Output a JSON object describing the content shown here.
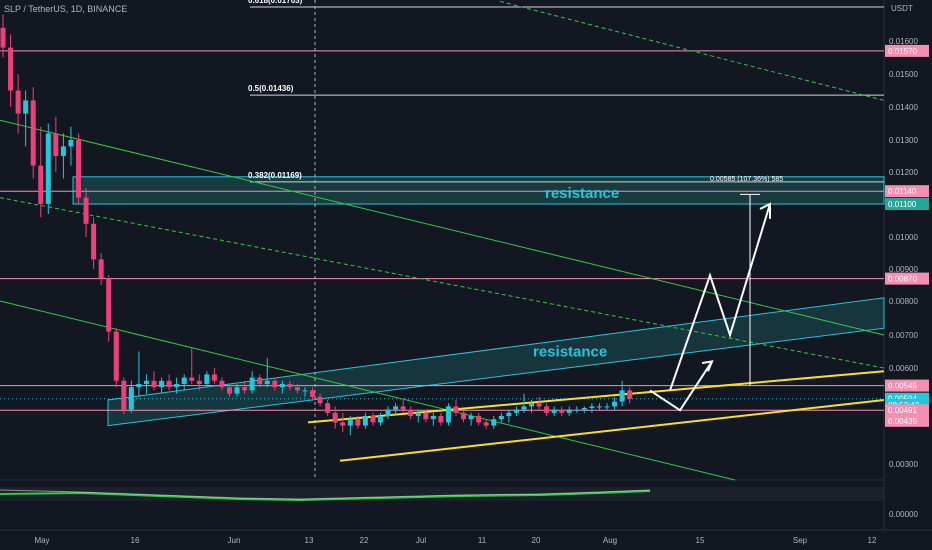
{
  "header": {
    "symbol_title": "SLP / TetherUS, 1D, BINANCE"
  },
  "colors": {
    "background": "#131722",
    "up": "#26c6da",
    "down": "#ec407a",
    "support": "#f7e02a",
    "resistance_zone": "#26a69a",
    "level_line": "#f48fb1",
    "trend_green": "#2ecc40",
    "white": "#ffffff"
  },
  "chart_data": {
    "type": "candlestick",
    "title": "SLP / TetherUS, 1D, BINANCE",
    "currency_label": "USDT",
    "y_axis_ticks": [
      "0.01600",
      "0.01500",
      "0.01400",
      "0.01300",
      "0.01200",
      "0.01100",
      "0.01000",
      "0.00900",
      "0.00800",
      "0.00700",
      "0.00600",
      "0.00300"
    ],
    "lower_pane_tick": "0.00000",
    "x_axis_ticks": [
      "May",
      "16",
      "Jun",
      "13",
      "22",
      "Jul",
      "11",
      "20",
      "Aug",
      "15",
      "Sep",
      "12"
    ],
    "price_badges": [
      {
        "label": "0.01570",
        "value": 0.0157,
        "color": "#f48fb1"
      },
      {
        "label": "0.01140",
        "value": 0.0114,
        "color": "#f48fb1"
      },
      {
        "label": "0.01100",
        "value": 0.011,
        "color": "#26a69a"
      },
      {
        "label": "0.00870",
        "value": 0.0087,
        "color": "#f48fb1"
      },
      {
        "label": "0.00545",
        "value": 0.00545,
        "color": "#f48fb1"
      },
      {
        "label": "0.00504",
        "value": 0.00504,
        "color": "#26c6da"
      },
      {
        "label": "08:53:43",
        "value": 0.00485,
        "color": "#26c6da"
      },
      {
        "label": "0.00491",
        "value": 0.00468,
        "color": "#f48fb1"
      },
      {
        "label": "0.00435",
        "value": 0.00435,
        "color": "#f48fb1"
      }
    ],
    "fib_levels": [
      {
        "label": "0.618(0.01703)",
        "value": 0.01703
      },
      {
        "label": "0.5(0.01436)",
        "value": 0.01436
      },
      {
        "label": "0.382(0.01169)",
        "value": 0.01169
      }
    ],
    "annotations": [
      {
        "text": "resistance",
        "x": "Jul 25",
        "value": 0.01137
      },
      {
        "text": "resistance",
        "x": "Jul 12",
        "value": 0.0065
      }
    ],
    "measure_label": "0.00585 (107.36%) 585",
    "candles": [
      {
        "t": 0,
        "o": 0.0164,
        "h": 0.0168,
        "l": 0.0155,
        "c": 0.0158
      },
      {
        "t": 1,
        "o": 0.0158,
        "h": 0.0162,
        "l": 0.014,
        "c": 0.0145
      },
      {
        "t": 2,
        "o": 0.0145,
        "h": 0.015,
        "l": 0.0132,
        "c": 0.0138
      },
      {
        "t": 3,
        "o": 0.0138,
        "h": 0.0145,
        "l": 0.0128,
        "c": 0.0142
      },
      {
        "t": 4,
        "o": 0.0142,
        "h": 0.0146,
        "l": 0.0118,
        "c": 0.0122
      },
      {
        "t": 5,
        "o": 0.0122,
        "h": 0.0134,
        "l": 0.0106,
        "c": 0.011
      },
      {
        "t": 6,
        "o": 0.011,
        "h": 0.0135,
        "l": 0.0107,
        "c": 0.0132
      },
      {
        "t": 7,
        "o": 0.0132,
        "h": 0.0137,
        "l": 0.012,
        "c": 0.0125
      },
      {
        "t": 8,
        "o": 0.0125,
        "h": 0.0132,
        "l": 0.0118,
        "c": 0.0128
      },
      {
        "t": 9,
        "o": 0.0128,
        "h": 0.0134,
        "l": 0.0122,
        "c": 0.013
      },
      {
        "t": 10,
        "o": 0.013,
        "h": 0.0132,
        "l": 0.011,
        "c": 0.0112
      },
      {
        "t": 11,
        "o": 0.0112,
        "h": 0.0115,
        "l": 0.01,
        "c": 0.0104
      },
      {
        "t": 12,
        "o": 0.0104,
        "h": 0.0106,
        "l": 0.009,
        "c": 0.0093
      },
      {
        "t": 13,
        "o": 0.0093,
        "h": 0.0095,
        "l": 0.0085,
        "c": 0.0087
      },
      {
        "t": 14,
        "o": 0.0087,
        "h": 0.0088,
        "l": 0.0068,
        "c": 0.0071
      },
      {
        "t": 15,
        "o": 0.0071,
        "h": 0.0072,
        "l": 0.0054,
        "c": 0.0056
      },
      {
        "t": 16,
        "o": 0.0056,
        "h": 0.0057,
        "l": 0.00455,
        "c": 0.0047
      },
      {
        "t": 17,
        "o": 0.0047,
        "h": 0.0056,
        "l": 0.0046,
        "c": 0.0054
      },
      {
        "t": 18,
        "o": 0.0054,
        "h": 0.0065,
        "l": 0.0051,
        "c": 0.0055
      },
      {
        "t": 19,
        "o": 0.0055,
        "h": 0.0058,
        "l": 0.0052,
        "c": 0.0056
      },
      {
        "t": 20,
        "o": 0.0056,
        "h": 0.0059,
        "l": 0.0053,
        "c": 0.0054
      },
      {
        "t": 21,
        "o": 0.0054,
        "h": 0.0057,
        "l": 0.0052,
        "c": 0.0056
      },
      {
        "t": 22,
        "o": 0.0056,
        "h": 0.0058,
        "l": 0.0053,
        "c": 0.0054
      },
      {
        "t": 23,
        "o": 0.0054,
        "h": 0.0057,
        "l": 0.0052,
        "c": 0.0055
      },
      {
        "t": 24,
        "o": 0.0055,
        "h": 0.0058,
        "l": 0.0053,
        "c": 0.0057
      },
      {
        "t": 25,
        "o": 0.0057,
        "h": 0.0066,
        "l": 0.0055,
        "c": 0.0056
      },
      {
        "t": 26,
        "o": 0.0056,
        "h": 0.0058,
        "l": 0.0053,
        "c": 0.0055
      },
      {
        "t": 27,
        "o": 0.0055,
        "h": 0.0059,
        "l": 0.0054,
        "c": 0.0058
      },
      {
        "t": 28,
        "o": 0.0058,
        "h": 0.006,
        "l": 0.0055,
        "c": 0.0056
      },
      {
        "t": 29,
        "o": 0.0056,
        "h": 0.0057,
        "l": 0.0053,
        "c": 0.0054
      },
      {
        "t": 30,
        "o": 0.0054,
        "h": 0.0055,
        "l": 0.0051,
        "c": 0.0052
      },
      {
        "t": 31,
        "o": 0.0052,
        "h": 0.0055,
        "l": 0.0051,
        "c": 0.0054
      },
      {
        "t": 32,
        "o": 0.0054,
        "h": 0.0056,
        "l": 0.0052,
        "c": 0.0053
      },
      {
        "t": 33,
        "o": 0.0053,
        "h": 0.0059,
        "l": 0.0052,
        "c": 0.0057
      },
      {
        "t": 34,
        "o": 0.0057,
        "h": 0.0058,
        "l": 0.0054,
        "c": 0.0055
      },
      {
        "t": 35,
        "o": 0.0055,
        "h": 0.0063,
        "l": 0.0054,
        "c": 0.0056
      },
      {
        "t": 36,
        "o": 0.0056,
        "h": 0.0057,
        "l": 0.0053,
        "c": 0.0054
      },
      {
        "t": 37,
        "o": 0.0054,
        "h": 0.0056,
        "l": 0.0052,
        "c": 0.0055
      },
      {
        "t": 38,
        "o": 0.0055,
        "h": 0.0056,
        "l": 0.0053,
        "c": 0.0054
      },
      {
        "t": 39,
        "o": 0.0054,
        "h": 0.0055,
        "l": 0.0052,
        "c": 0.0053
      },
      {
        "t": 40,
        "o": 0.0053,
        "h": 0.0054,
        "l": 0.0051,
        "c": 0.0053
      },
      {
        "t": 41,
        "o": 0.0053,
        "h": 0.0054,
        "l": 0.005,
        "c": 0.0051
      },
      {
        "t": 42,
        "o": 0.0051,
        "h": 0.0052,
        "l": 0.0048,
        "c": 0.0049
      },
      {
        "t": 43,
        "o": 0.0049,
        "h": 0.005,
        "l": 0.0045,
        "c": 0.0046
      },
      {
        "t": 44,
        "o": 0.0046,
        "h": 0.0048,
        "l": 0.0041,
        "c": 0.0043
      },
      {
        "t": 45,
        "o": 0.0043,
        "h": 0.0046,
        "l": 0.004,
        "c": 0.0042
      },
      {
        "t": 46,
        "o": 0.0042,
        "h": 0.0045,
        "l": 0.0039,
        "c": 0.0044
      },
      {
        "t": 47,
        "o": 0.0044,
        "h": 0.0045,
        "l": 0.0041,
        "c": 0.0042
      },
      {
        "t": 48,
        "o": 0.0042,
        "h": 0.0046,
        "l": 0.0041,
        "c": 0.0045
      },
      {
        "t": 49,
        "o": 0.0045,
        "h": 0.0046,
        "l": 0.0042,
        "c": 0.0043
      },
      {
        "t": 50,
        "o": 0.0043,
        "h": 0.0046,
        "l": 0.0042,
        "c": 0.0045
      },
      {
        "t": 51,
        "o": 0.0045,
        "h": 0.0048,
        "l": 0.0044,
        "c": 0.0047
      },
      {
        "t": 52,
        "o": 0.0047,
        "h": 0.0049,
        "l": 0.0045,
        "c": 0.0048
      },
      {
        "t": 53,
        "o": 0.0048,
        "h": 0.005,
        "l": 0.0046,
        "c": 0.0047
      },
      {
        "t": 54,
        "o": 0.0047,
        "h": 0.0048,
        "l": 0.0044,
        "c": 0.0045
      },
      {
        "t": 55,
        "o": 0.0045,
        "h": 0.0047,
        "l": 0.0043,
        "c": 0.0046
      },
      {
        "t": 56,
        "o": 0.0046,
        "h": 0.0047,
        "l": 0.0043,
        "c": 0.0044
      },
      {
        "t": 57,
        "o": 0.0044,
        "h": 0.0046,
        "l": 0.0042,
        "c": 0.0045
      },
      {
        "t": 58,
        "o": 0.0045,
        "h": 0.0046,
        "l": 0.0042,
        "c": 0.0043
      },
      {
        "t": 59,
        "o": 0.0043,
        "h": 0.0049,
        "l": 0.0042,
        "c": 0.0048
      },
      {
        "t": 60,
        "o": 0.0048,
        "h": 0.005,
        "l": 0.0045,
        "c": 0.0046
      },
      {
        "t": 61,
        "o": 0.0046,
        "h": 0.0047,
        "l": 0.0043,
        "c": 0.0044
      },
      {
        "t": 62,
        "o": 0.0044,
        "h": 0.0046,
        "l": 0.0042,
        "c": 0.0045
      },
      {
        "t": 63,
        "o": 0.0045,
        "h": 0.0046,
        "l": 0.0042,
        "c": 0.0043
      },
      {
        "t": 64,
        "o": 0.0043,
        "h": 0.0044,
        "l": 0.0041,
        "c": 0.0042
      },
      {
        "t": 65,
        "o": 0.0042,
        "h": 0.0045,
        "l": 0.0041,
        "c": 0.0044
      },
      {
        "t": 66,
        "o": 0.0044,
        "h": 0.0046,
        "l": 0.0043,
        "c": 0.0045
      },
      {
        "t": 67,
        "o": 0.0045,
        "h": 0.0047,
        "l": 0.0043,
        "c": 0.0046
      },
      {
        "t": 68,
        "o": 0.0046,
        "h": 0.0048,
        "l": 0.0045,
        "c": 0.0047
      },
      {
        "t": 69,
        "o": 0.0047,
        "h": 0.0052,
        "l": 0.0046,
        "c": 0.0048
      },
      {
        "t": 70,
        "o": 0.0048,
        "h": 0.005,
        "l": 0.0046,
        "c": 0.0049
      },
      {
        "t": 71,
        "o": 0.0049,
        "h": 0.0051,
        "l": 0.0047,
        "c": 0.0048
      },
      {
        "t": 72,
        "o": 0.0048,
        "h": 0.0049,
        "l": 0.0045,
        "c": 0.0046
      },
      {
        "t": 73,
        "o": 0.0046,
        "h": 0.0048,
        "l": 0.0045,
        "c": 0.0047
      },
      {
        "t": 74,
        "o": 0.0047,
        "h": 0.0048,
        "l": 0.0045,
        "c": 0.0046
      },
      {
        "t": 75,
        "o": 0.0046,
        "h": 0.0048,
        "l": 0.0045,
        "c": 0.0047
      },
      {
        "t": 76,
        "o": 0.0047,
        "h": 0.0048,
        "l": 0.0046,
        "c": 0.0047
      },
      {
        "t": 77,
        "o": 0.0047,
        "h": 0.0048,
        "l": 0.0046,
        "c": 0.00475
      },
      {
        "t": 78,
        "o": 0.00475,
        "h": 0.0049,
        "l": 0.0046,
        "c": 0.0048
      },
      {
        "t": 79,
        "o": 0.0048,
        "h": 0.0049,
        "l": 0.0047,
        "c": 0.0048
      },
      {
        "t": 80,
        "o": 0.0048,
        "h": 0.0049,
        "l": 0.0047,
        "c": 0.0048
      },
      {
        "t": 81,
        "o": 0.0048,
        "h": 0.0051,
        "l": 0.0047,
        "c": 0.00495
      },
      {
        "t": 82,
        "o": 0.00495,
        "h": 0.0056,
        "l": 0.0048,
        "c": 0.0053
      },
      {
        "t": 83,
        "o": 0.0053,
        "h": 0.0054,
        "l": 0.0049,
        "c": 0.00504
      }
    ]
  }
}
